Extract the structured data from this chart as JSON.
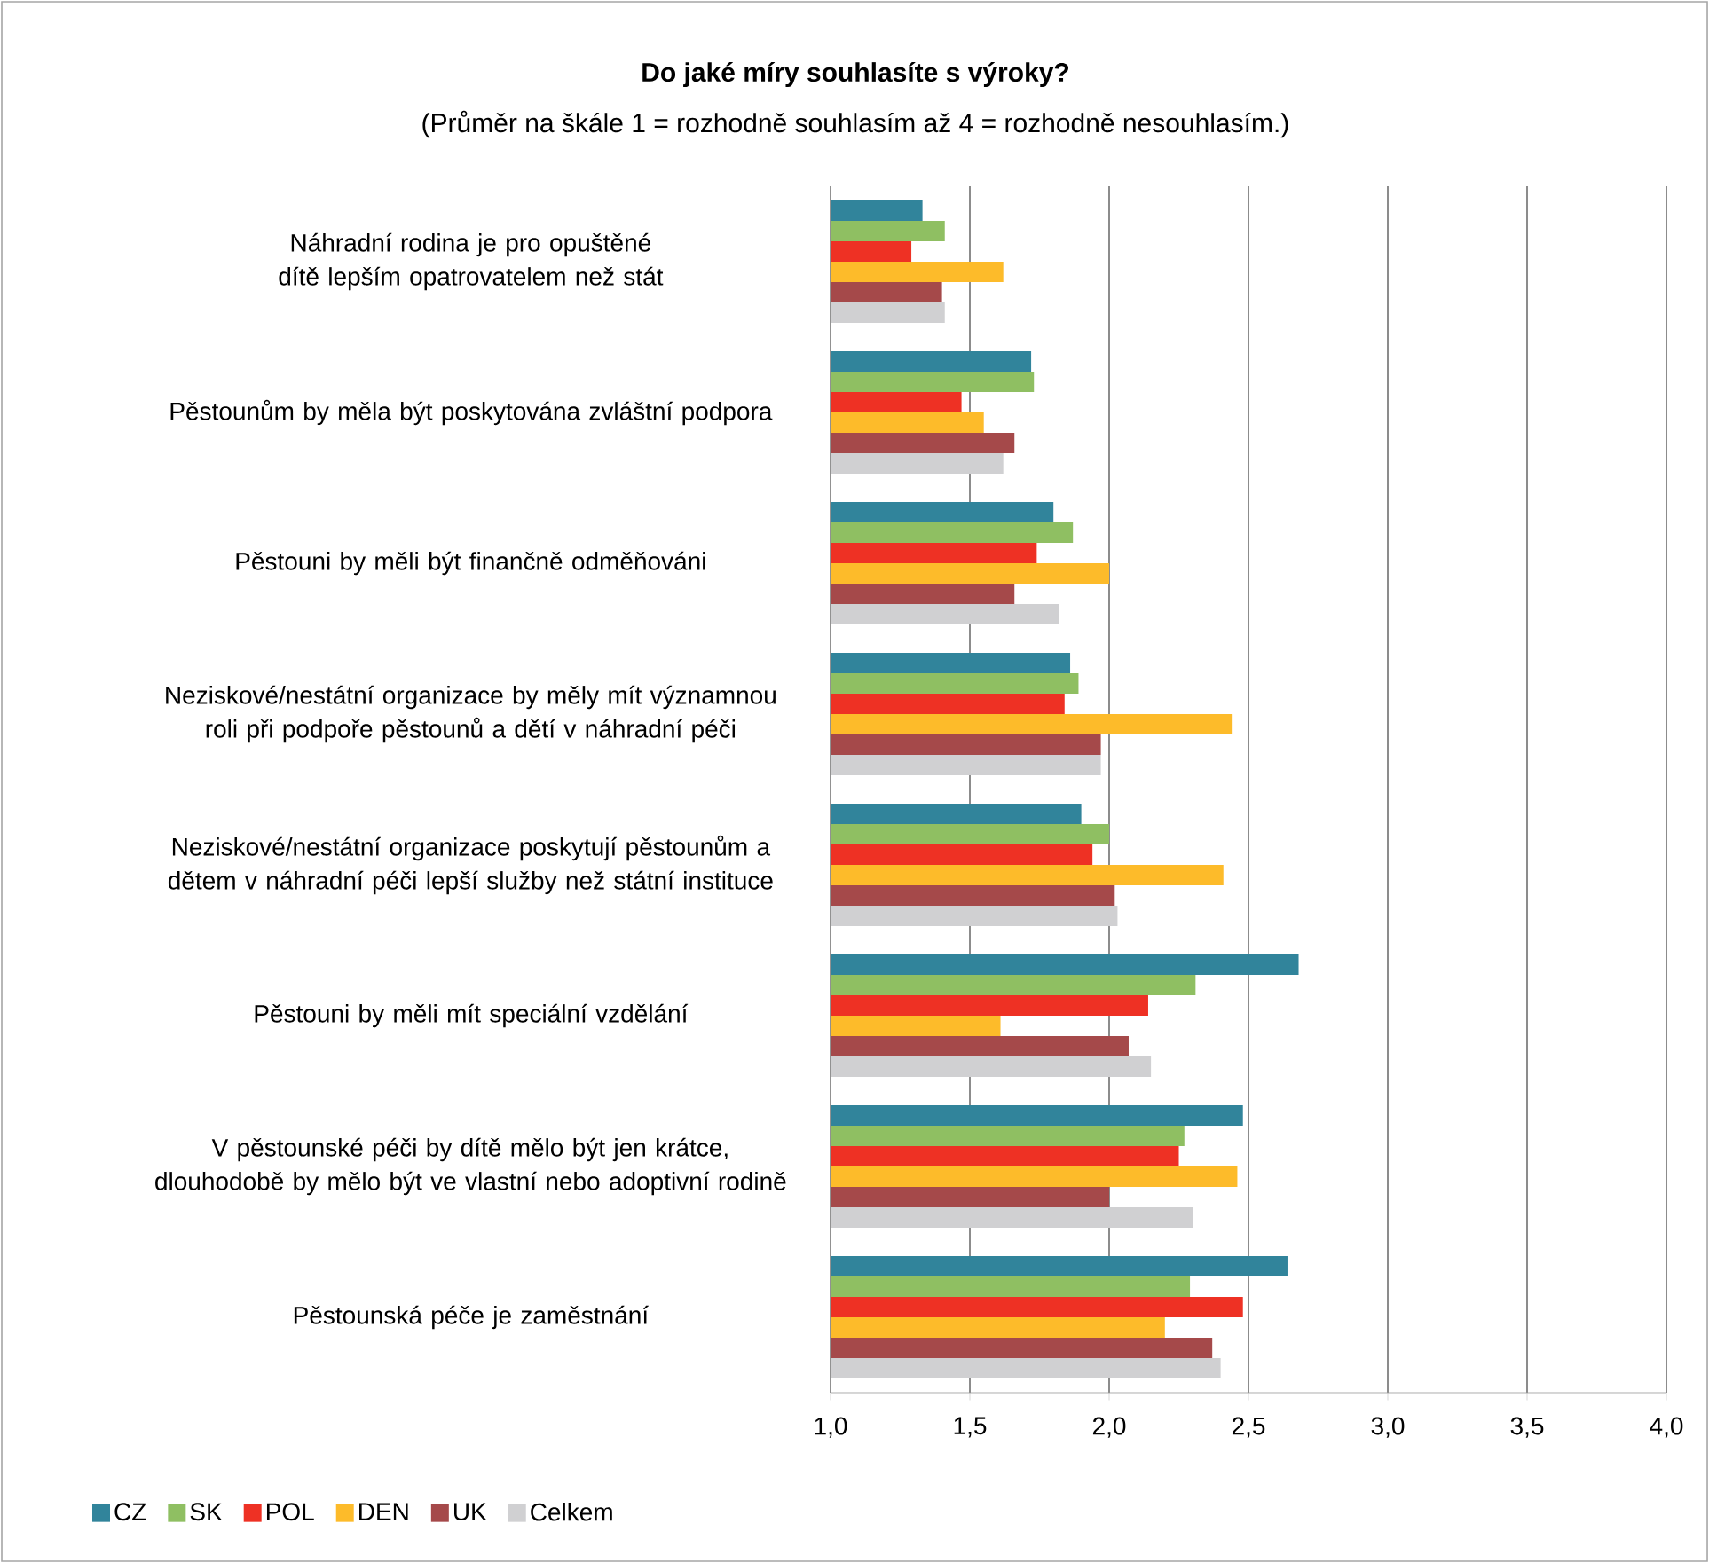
{
  "chart_data": {
    "type": "bar",
    "orientation": "horizontal",
    "title": "Do jaké míry souhlasíte s výroky?",
    "subtitle": "(Průměr na škále 1 = rozhodně souhlasím až 4 = rozhodně nesouhlasím.)",
    "categories": [
      "Náhradní rodina je pro opuštěné dítě lepším opatrovatelem než stát",
      "Pěstounům by měla být poskytována zvláštní podpora",
      "Pěstouni by měli být finančně odměňováni",
      "Neziskové/nestátní organizace by měly mít významnou roli při podpoře pěstounů a dětí v náhradní péči",
      "Neziskové/nestátní organizace poskytují pěstounům a dětem v náhradní péči lepší služby než státní instituce",
      "Pěstouni by měli mít speciální vzdělání",
      "V pěstounské péči by dítě mělo být jen krátce, dlouhodobě by mělo být ve vlastní nebo adoptivní rodině",
      "Pěstounská péče je zaměstnání"
    ],
    "series": [
      {
        "name": "CZ",
        "color": "#31849b",
        "values": [
          1.33,
          1.72,
          1.8,
          1.86,
          1.9,
          2.68,
          2.48,
          2.64
        ]
      },
      {
        "name": "SK",
        "color": "#8fbf62",
        "values": [
          1.41,
          1.73,
          1.87,
          1.89,
          2.0,
          2.31,
          2.27,
          2.29
        ]
      },
      {
        "name": "POL",
        "color": "#ee3124",
        "values": [
          1.29,
          1.47,
          1.74,
          1.84,
          1.94,
          2.14,
          2.25,
          2.48
        ]
      },
      {
        "name": "DEN",
        "color": "#fdbb2a",
        "values": [
          1.62,
          1.55,
          2.0,
          2.44,
          2.41,
          1.61,
          2.46,
          2.2
        ]
      },
      {
        "name": "UK",
        "color": "#a5494a",
        "values": [
          1.4,
          1.66,
          1.66,
          1.97,
          2.02,
          2.07,
          2.0,
          2.37
        ]
      },
      {
        "name": "Celkem",
        "color": "#d0d0d2",
        "values": [
          1.41,
          1.62,
          1.82,
          1.97,
          2.03,
          2.15,
          2.3,
          2.4
        ]
      }
    ],
    "xlim": [
      1,
      4
    ],
    "xticks": [
      {
        "value": 1,
        "label": "1,0"
      },
      {
        "value": 1.5,
        "label": "1,5"
      },
      {
        "value": 2,
        "label": "2,0"
      },
      {
        "value": 2.5,
        "label": "2,5"
      },
      {
        "value": 3,
        "label": "3,0"
      },
      {
        "value": 3.5,
        "label": "3,5"
      },
      {
        "value": 4,
        "label": "4,0"
      }
    ],
    "grid": "x",
    "legend": "bottom left"
  }
}
